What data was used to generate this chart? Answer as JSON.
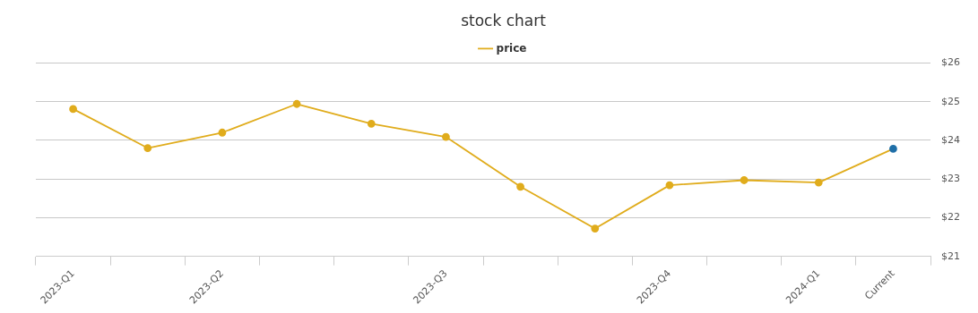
{
  "chart_data": {
    "type": "line",
    "title": "stock chart",
    "categories": [
      "2023-Q1",
      null,
      "2023-Q2",
      null,
      null,
      "2023-Q3",
      null,
      null,
      "2023-Q4",
      null,
      "2024-Q1",
      "Current"
    ],
    "series": [
      {
        "name": "price",
        "color": "#e0ac1c",
        "colors": [
          "#e0ac1c",
          "#e0ac1c",
          "#e0ac1c",
          "#e0ac1c",
          "#e0ac1c",
          "#e0ac1c",
          "#e0ac1c",
          "#e0ac1c",
          "#e0ac1c",
          "#e0ac1c",
          "#e0ac1c",
          "#1f6fa8"
        ],
        "values": [
          24.81,
          23.8,
          24.2,
          24.94,
          24.43,
          24.09,
          22.8,
          21.72,
          22.84,
          22.97,
          22.91,
          23.78
        ]
      }
    ],
    "ylim": [
      21,
      26
    ],
    "yticks": [
      {
        "value": 21,
        "label": "$21"
      },
      {
        "value": 22,
        "label": "$22"
      },
      {
        "value": 23,
        "label": "$23"
      },
      {
        "value": 24,
        "label": "$24"
      },
      {
        "value": 25,
        "label": "$25"
      },
      {
        "value": 26,
        "label": "$26"
      }
    ],
    "grid": "y",
    "legend": "top",
    "marker": "circle",
    "line_style": "solid"
  }
}
